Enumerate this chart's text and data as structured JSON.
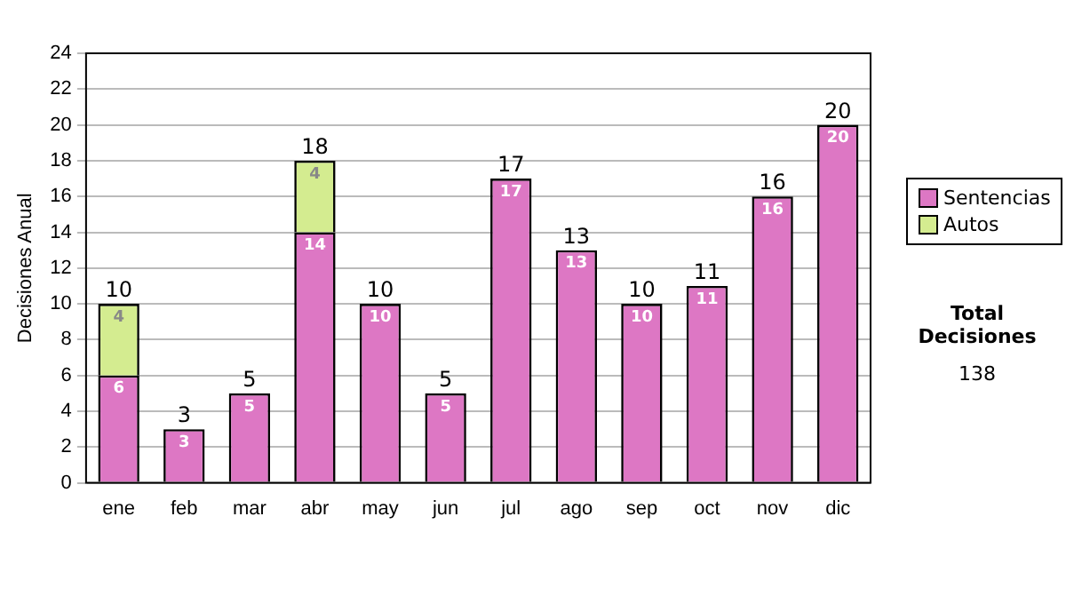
{
  "chart_data": {
    "type": "bar",
    "stacked": true,
    "ylabel": "Decisiones Anual",
    "categories": [
      "ene",
      "feb",
      "mar",
      "abr",
      "may",
      "jun",
      "jul",
      "ago",
      "sep",
      "oct",
      "nov",
      "dic"
    ],
    "series": [
      {
        "name": "Sentencias",
        "color": "#dd77c4",
        "values": [
          6,
          3,
          5,
          14,
          10,
          5,
          17,
          13,
          10,
          11,
          16,
          20
        ],
        "value_labels": [
          "6",
          "3",
          "5",
          "14",
          "10",
          "5",
          "17",
          "13",
          "10",
          "11",
          "16",
          "20"
        ]
      },
      {
        "name": "Autos",
        "color": "#d4ec90",
        "values": [
          4,
          0,
          0,
          4,
          0,
          0,
          0,
          0,
          0,
          0,
          0,
          0
        ],
        "value_labels": [
          "4",
          null,
          null,
          "4",
          null,
          null,
          null,
          null,
          null,
          null,
          null,
          null
        ]
      }
    ],
    "totals": [
      "10",
      "3",
      "5",
      "18",
      "10",
      "5",
      "17",
      "13",
      "10",
      "11",
      "16",
      "20"
    ],
    "ylim": [
      0,
      24
    ],
    "yticks": [
      0,
      2,
      4,
      6,
      8,
      10,
      12,
      14,
      16,
      18,
      20,
      22,
      24
    ],
    "grid": "y",
    "legend": "right",
    "annotations": [
      "Total Decisiones",
      "138"
    ]
  }
}
